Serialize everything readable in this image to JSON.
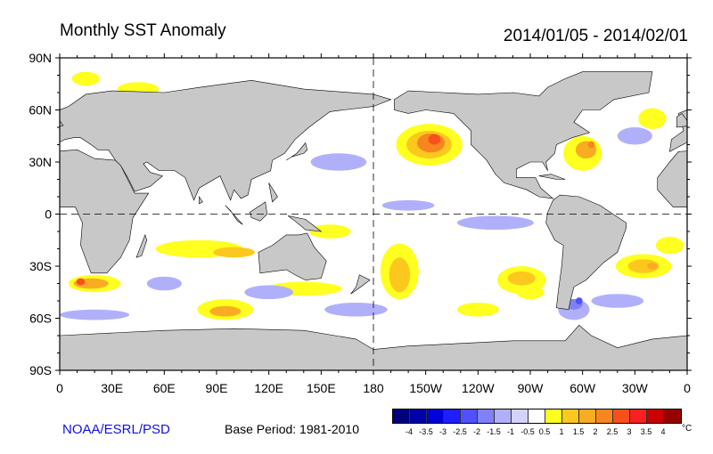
{
  "title": "Monthly SST Anomaly",
  "date_range": "2014/01/05 - 2014/02/01",
  "lat_labels": [
    "90N",
    "60N",
    "30N",
    "0",
    "30S",
    "60S",
    "90S"
  ],
  "lon_labels": [
    "0",
    "30E",
    "60E",
    "90E",
    "120E",
    "150E",
    "180",
    "150W",
    "120W",
    "90W",
    "60W",
    "30W",
    "0"
  ],
  "credit": "NOAA/ESRL/PSD",
  "base_period": "Base Period: 1981-2010",
  "colorbar": {
    "labels": [
      "-4",
      "-3.5",
      "-3",
      "-2.5",
      "-2",
      "-1.5",
      "-1",
      "-0.5",
      "0.5",
      "1",
      "1.5",
      "2",
      "2.5",
      "3",
      "3.5",
      "4"
    ],
    "colors": [
      "#00007d",
      "#0000a8",
      "#0000d8",
      "#1e1eff",
      "#5050ff",
      "#8080f8",
      "#b0b0fa",
      "#d2d2fc",
      "#ffffff",
      "#ffff20",
      "#fcc81e",
      "#f9ac22",
      "#f88520",
      "#f8501c",
      "#f82020",
      "#c80000",
      "#960000"
    ],
    "unit": "°C"
  },
  "colors": {
    "land": "#c8c8c8",
    "ocean": "#ffffff"
  }
}
